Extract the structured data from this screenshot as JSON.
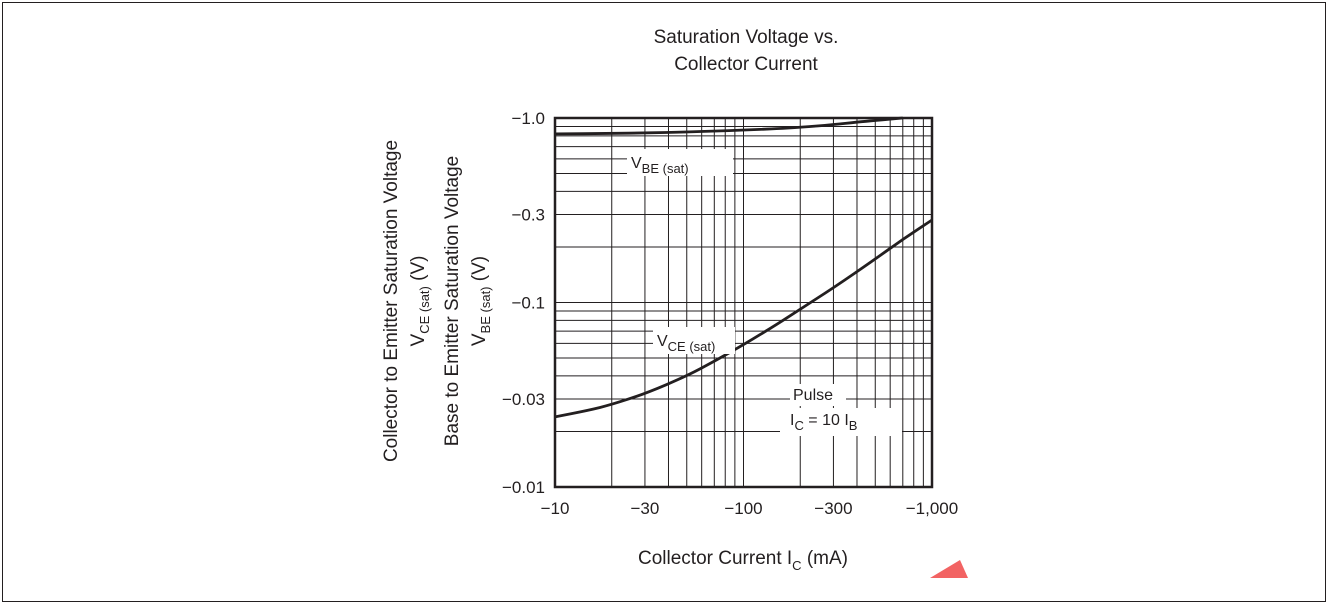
{
  "chart_data": {
    "type": "line",
    "title": [
      "Saturation Voltage vs.",
      "Collector Current"
    ],
    "xlabel": {
      "main": "Collector Current  I",
      "sub": "C",
      "unit": "  (mA)"
    },
    "ylabel_1": {
      "main": "Collector to Emitter Saturation Voltage"
    },
    "ylabel_2": {
      "main": "V",
      "sub": "CE  (sat)",
      "unit": "  (V)"
    },
    "ylabel_3": {
      "main": "Base to Emitter Saturation Voltage"
    },
    "ylabel_4": {
      "main": "V",
      "sub": "BE (sat)",
      "unit": "  (V)"
    },
    "x_scale": "log",
    "y_scale": "log",
    "xlim": [
      -10,
      -1000
    ],
    "ylim": [
      -0.01,
      -1.0
    ],
    "x_ticks": [
      {
        "v": -10,
        "label": "−10"
      },
      {
        "v": -30,
        "label": "−30"
      },
      {
        "v": -100,
        "label": "−100"
      },
      {
        "v": -300,
        "label": "−300"
      },
      {
        "v": -1000,
        "label": "−1,000"
      }
    ],
    "y_ticks": [
      {
        "v": -1.0,
        "label": "−1.0"
      },
      {
        "v": -0.3,
        "label": "−0.3"
      },
      {
        "v": -0.1,
        "label": "−0.1"
      },
      {
        "v": -0.03,
        "label": "−0.03"
      },
      {
        "v": -0.01,
        "label": "−0.01"
      }
    ],
    "grid": true,
    "series": [
      {
        "name": "V_BE (sat)",
        "label": {
          "main": "V",
          "sub": "BE (sat)"
        },
        "x": [
          -10,
          -20,
          -30,
          -50,
          -70,
          -100,
          -150,
          -200,
          -300,
          -400,
          -500,
          -700
        ],
        "y": [
          -0.82,
          -0.825,
          -0.83,
          -0.84,
          -0.85,
          -0.86,
          -0.875,
          -0.89,
          -0.92,
          -0.95,
          -0.97,
          -1.0
        ]
      },
      {
        "name": "V_CE (sat)",
        "label": {
          "main": "V",
          "sub": "CE (sat)"
        },
        "x": [
          -10,
          -15,
          -20,
          -30,
          -50,
          -70,
          -100,
          -150,
          -200,
          -300,
          -500,
          -700,
          -1000
        ],
        "y": [
          -0.024,
          -0.026,
          -0.028,
          -0.032,
          -0.04,
          -0.048,
          -0.059,
          -0.076,
          -0.092,
          -0.12,
          -0.172,
          -0.22,
          -0.28
        ]
      }
    ],
    "annotation": {
      "line1": "Pulse",
      "l2_a": "I",
      "l2_sub": "C",
      "l2_b": " = 10 I",
      "l2_sub2": "B"
    }
  }
}
